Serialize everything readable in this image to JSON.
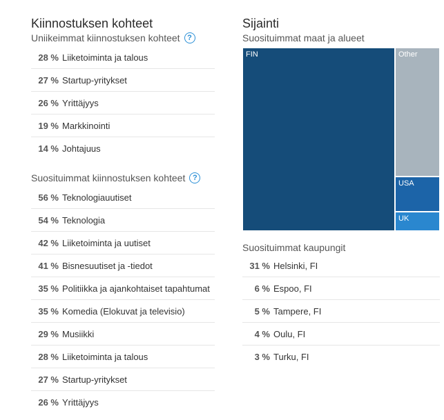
{
  "interests": {
    "title": "Kiinnostuksen kohteet",
    "unique": {
      "subtitle": "Uniikeimmat kiinnostuksen kohteet",
      "help": "?",
      "items": [
        {
          "pct": "28 %",
          "label": "Liiketoiminta ja talous"
        },
        {
          "pct": "27 %",
          "label": "Startup-yritykset"
        },
        {
          "pct": "26 %",
          "label": "Yrittäjyys"
        },
        {
          "pct": "19 %",
          "label": "Markkinointi"
        },
        {
          "pct": "14 %",
          "label": "Johtajuus"
        }
      ]
    },
    "popular": {
      "subtitle": "Suosituimmat kiinnostuksen kohteet",
      "help": "?",
      "items": [
        {
          "pct": "56 %",
          "label": "Teknologiauutiset"
        },
        {
          "pct": "54 %",
          "label": "Teknologia"
        },
        {
          "pct": "42 %",
          "label": "Liiketoiminta ja uutiset"
        },
        {
          "pct": "41 %",
          "label": "Bisnesuutiset ja -tiedot"
        },
        {
          "pct": "35 %",
          "label": "Politiikka ja ajankohtaiset tapahtumat"
        },
        {
          "pct": "35 %",
          "label": "Komedia (Elokuvat ja televisio)"
        },
        {
          "pct": "29 %",
          "label": "Musiikki"
        },
        {
          "pct": "28 %",
          "label": "Liiketoiminta ja talous"
        },
        {
          "pct": "27 %",
          "label": "Startup-yritykset"
        },
        {
          "pct": "26 %",
          "label": "Yrittäjyys"
        }
      ]
    }
  },
  "location": {
    "title": "Sijainti",
    "countries_subtitle": "Suosituimmat maat ja alueet",
    "treemap": [
      {
        "label": "FIN",
        "color": "#154c79"
      },
      {
        "label": "Other",
        "color": "#a8b4bd"
      },
      {
        "label": "USA",
        "color": "#1c64a8"
      },
      {
        "label": "UK",
        "color": "#2a87cf"
      }
    ],
    "cities_subtitle": "Suosituimmat kaupungit",
    "cities": [
      {
        "pct": "31 %",
        "label": "Helsinki, FI"
      },
      {
        "pct": "6 %",
        "label": "Espoo, FI"
      },
      {
        "pct": "5 %",
        "label": "Tampere, FI"
      },
      {
        "pct": "4 %",
        "label": "Oulu, FI"
      },
      {
        "pct": "3 %",
        "label": "Turku, FI"
      }
    ]
  }
}
